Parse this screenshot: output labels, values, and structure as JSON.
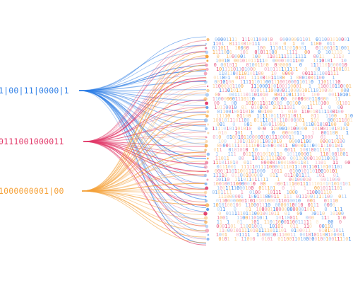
{
  "sources": [
    {
      "id": "blue",
      "bits": "1|00|11|0000|1",
      "color": "#2f7fe6"
    },
    {
      "id": "red",
      "bits": "0111001000011",
      "color": "#e23a6a"
    },
    {
      "id": "orange",
      "bits": "1000000001|00",
      "color": "#f5a23a"
    }
  ],
  "palette": {
    "blue": "#2f7fe6",
    "red": "#e23a6a",
    "orange": "#f5a23a",
    "light_blue": "#8ab8f0",
    "pink": "#f08aa8",
    "light_orange": "#f8c98a",
    "background": "#ffffff"
  },
  "binary_field_charset": "01"
}
